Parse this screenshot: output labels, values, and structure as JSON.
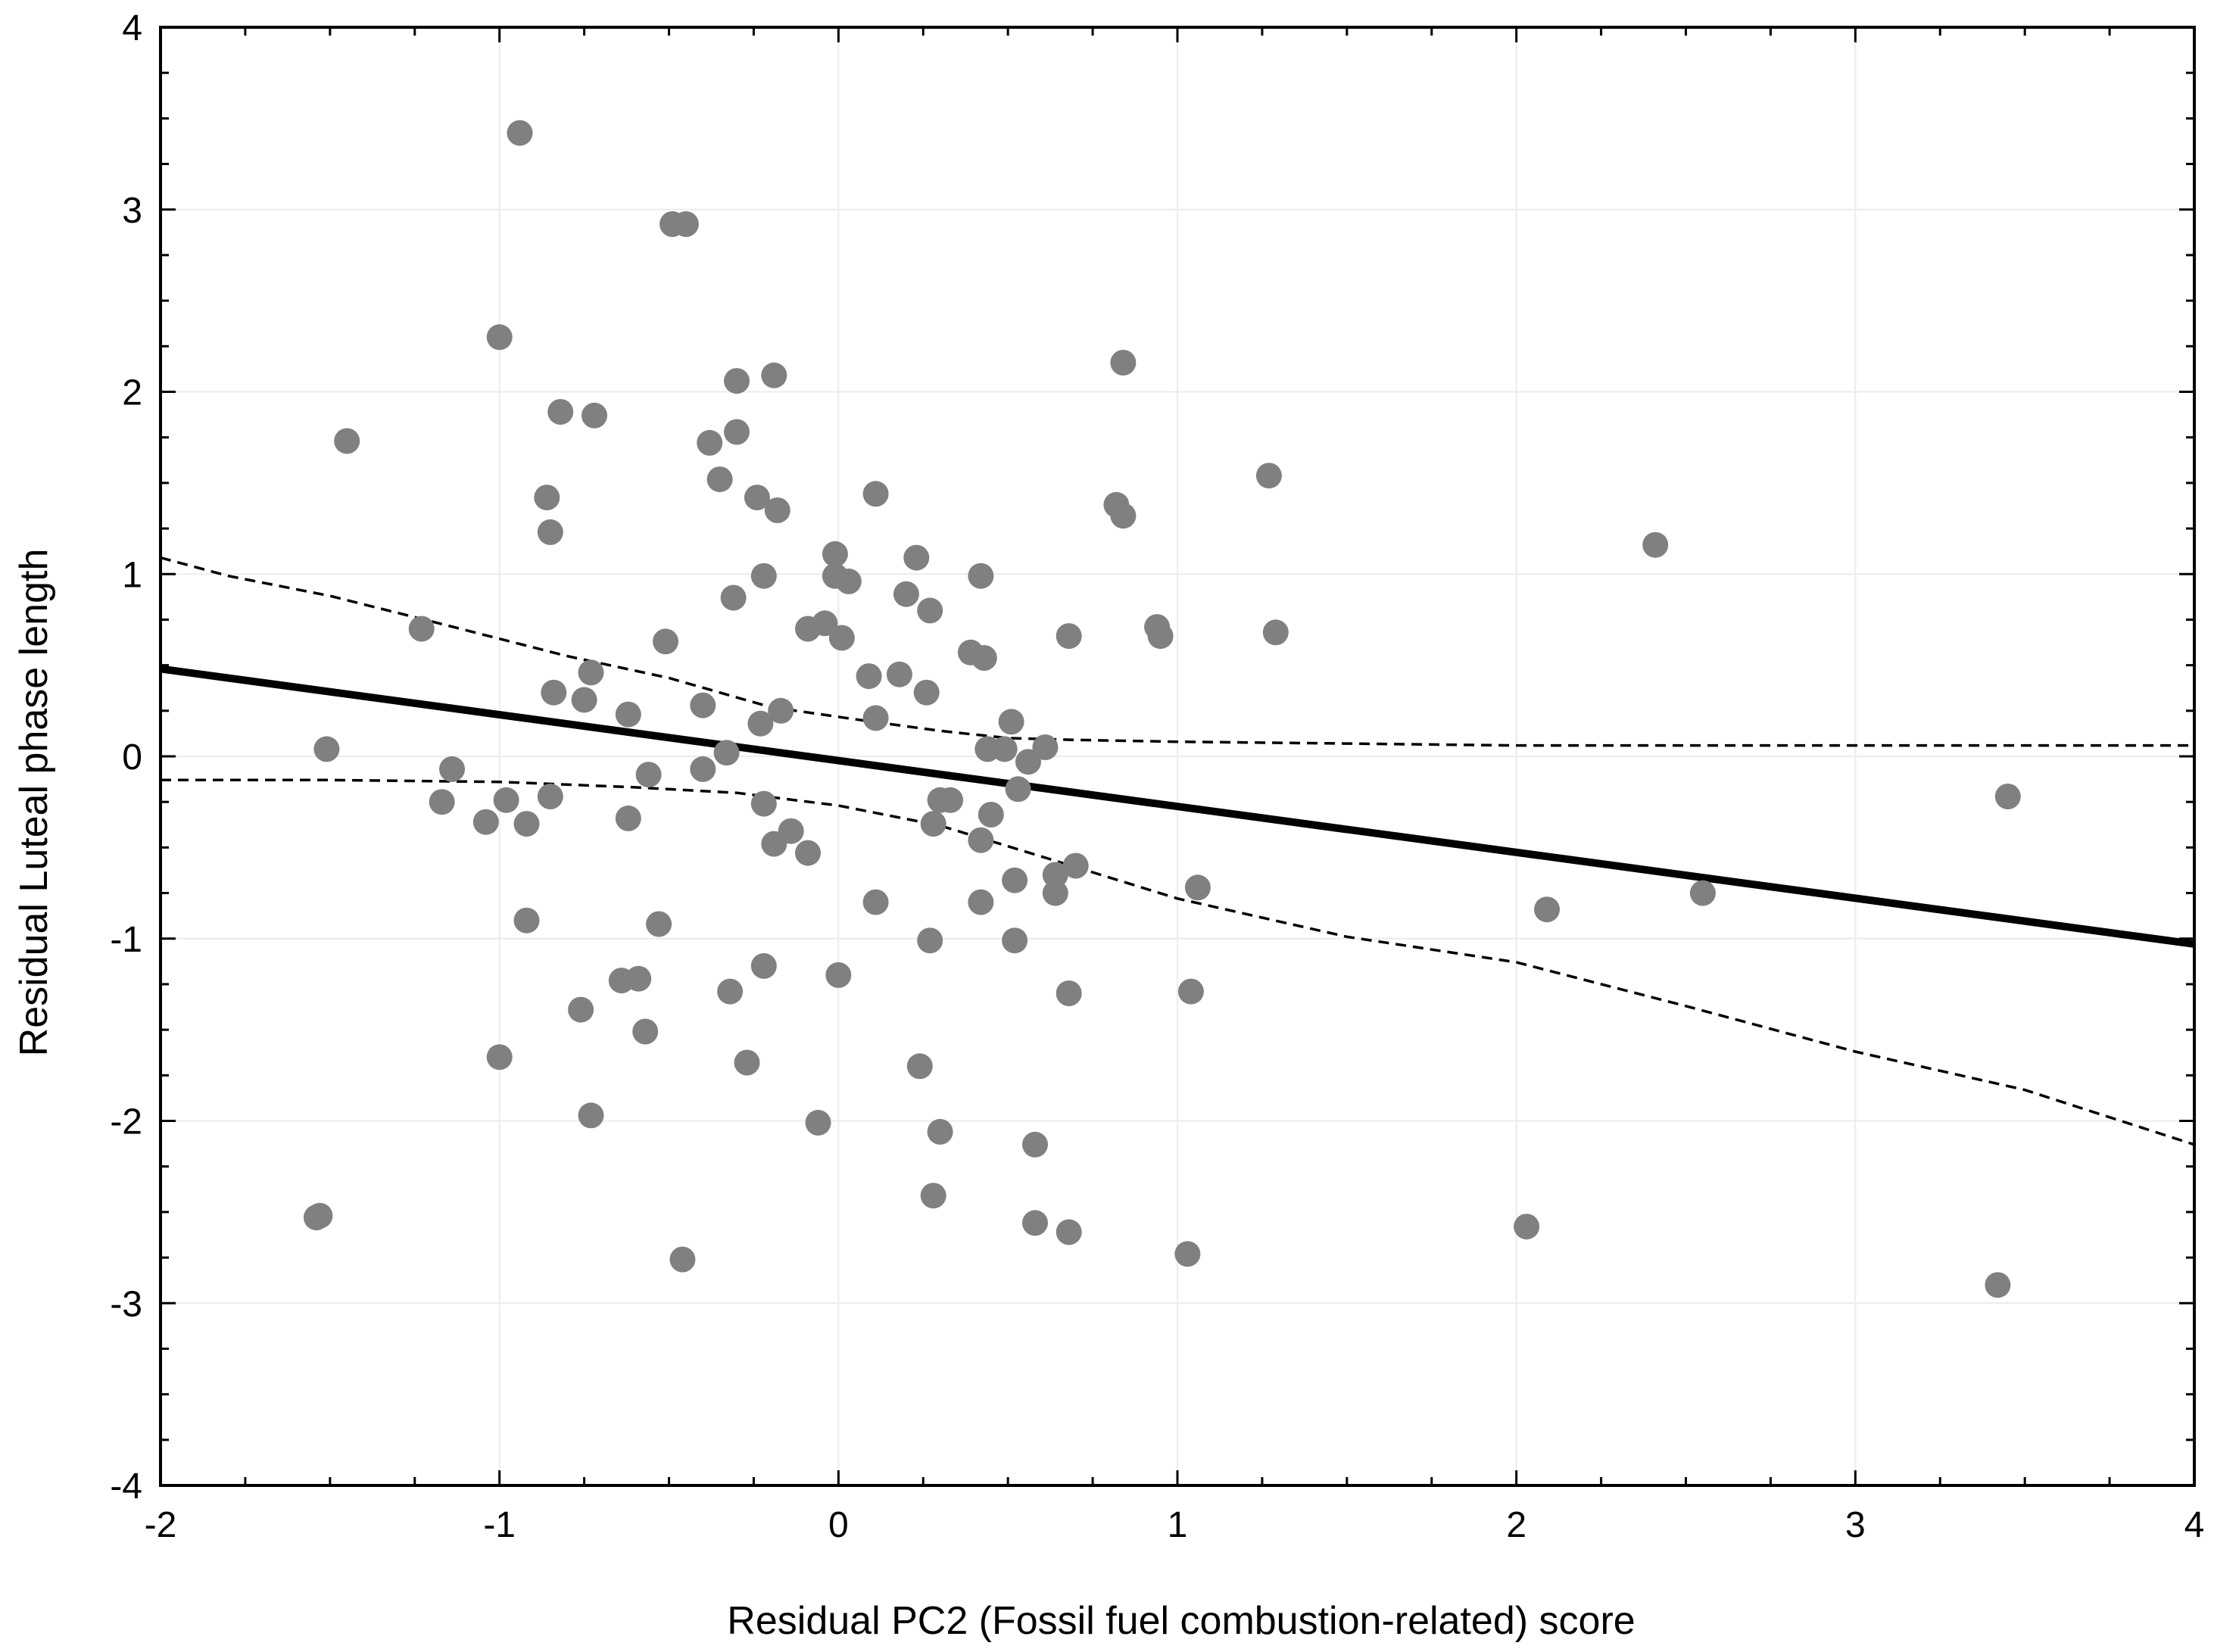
{
  "chart_data": {
    "type": "scatter",
    "title": "",
    "xlabel": "Residual PC2 (Fossil fuel combustion-related) score",
    "ylabel": "Residual Luteal phase length",
    "xlim": [
      -2,
      4
    ],
    "ylim": [
      -4,
      4
    ],
    "x_ticks": [
      -2,
      -1,
      0,
      1,
      2,
      3,
      4
    ],
    "y_ticks": [
      -4,
      -3,
      -2,
      -1,
      0,
      1,
      2,
      3,
      4
    ],
    "x_tick_labels": [
      "-2",
      "-1",
      "0",
      "1",
      "2",
      "3",
      "4"
    ],
    "y_tick_labels": [
      "-4",
      "-3",
      "-2",
      "-1",
      "0",
      "1",
      "2",
      "3",
      "4"
    ],
    "grid": true,
    "point_color": "#808080",
    "points": [
      [
        -0.94,
        3.42
      ],
      [
        -0.49,
        2.92
      ],
      [
        -0.45,
        2.92
      ],
      [
        -1.0,
        2.3
      ],
      [
        -0.3,
        2.06
      ],
      [
        -0.19,
        2.09
      ],
      [
        -0.82,
        1.89
      ],
      [
        -0.72,
        1.87
      ],
      [
        -1.45,
        1.73
      ],
      [
        -0.3,
        1.78
      ],
      [
        -0.38,
        1.72
      ],
      [
        -0.35,
        1.52
      ],
      [
        -0.86,
        1.42
      ],
      [
        -0.24,
        1.42
      ],
      [
        -0.18,
        1.35
      ],
      [
        -0.85,
        1.23
      ],
      [
        0.11,
        1.44
      ],
      [
        0.84,
        2.16
      ],
      [
        0.82,
        1.38
      ],
      [
        0.84,
        1.32
      ],
      [
        1.27,
        1.54
      ],
      [
        2.41,
        1.16
      ],
      [
        -0.01,
        1.11
      ],
      [
        0.23,
        1.09
      ],
      [
        0.42,
        0.99
      ],
      [
        -0.22,
        0.99
      ],
      [
        -0.01,
        0.99
      ],
      [
        0.03,
        0.96
      ],
      [
        0.2,
        0.89
      ],
      [
        -0.31,
        0.87
      ],
      [
        0.27,
        0.8
      ],
      [
        -1.23,
        0.7
      ],
      [
        -0.09,
        0.7
      ],
      [
        -0.04,
        0.73
      ],
      [
        0.01,
        0.65
      ],
      [
        -0.51,
        0.63
      ],
      [
        0.68,
        0.66
      ],
      [
        0.94,
        0.71
      ],
      [
        0.95,
        0.66
      ],
      [
        1.29,
        0.68
      ],
      [
        -0.73,
        0.46
      ],
      [
        0.09,
        0.44
      ],
      [
        0.18,
        0.45
      ],
      [
        0.39,
        0.57
      ],
      [
        0.43,
        0.54
      ],
      [
        -0.84,
        0.35
      ],
      [
        -0.75,
        0.31
      ],
      [
        0.26,
        0.35
      ],
      [
        -0.62,
        0.23
      ],
      [
        -0.4,
        0.28
      ],
      [
        -0.17,
        0.25
      ],
      [
        -0.23,
        0.18
      ],
      [
        0.11,
        0.21
      ],
      [
        0.51,
        0.19
      ],
      [
        -1.51,
        0.04
      ],
      [
        -0.33,
        0.02
      ],
      [
        0.44,
        0.04
      ],
      [
        0.49,
        0.04
      ],
      [
        0.61,
        0.05
      ],
      [
        0.56,
        -0.03
      ],
      [
        -1.14,
        -0.07
      ],
      [
        -0.56,
        -0.1
      ],
      [
        -0.4,
        -0.07
      ],
      [
        0.53,
        -0.18
      ],
      [
        -1.17,
        -0.25
      ],
      [
        -0.98,
        -0.24
      ],
      [
        -0.85,
        -0.22
      ],
      [
        -0.22,
        -0.26
      ],
      [
        0.3,
        -0.24
      ],
      [
        0.33,
        -0.24
      ],
      [
        -1.04,
        -0.36
      ],
      [
        -0.92,
        -0.37
      ],
      [
        -0.62,
        -0.34
      ],
      [
        0.28,
        -0.37
      ],
      [
        0.45,
        -0.32
      ],
      [
        -0.14,
        -0.41
      ],
      [
        -0.19,
        -0.48
      ],
      [
        -0.09,
        -0.53
      ],
      [
        0.42,
        -0.46
      ],
      [
        0.7,
        -0.6
      ],
      [
        0.64,
        -0.65
      ],
      [
        0.52,
        -0.68
      ],
      [
        0.64,
        -0.75
      ],
      [
        1.06,
        -0.72
      ],
      [
        3.45,
        -0.22
      ],
      [
        0.11,
        -0.8
      ],
      [
        0.42,
        -0.8
      ],
      [
        2.09,
        -0.84
      ],
      [
        2.55,
        -0.75
      ],
      [
        -0.92,
        -0.9
      ],
      [
        -0.53,
        -0.92
      ],
      [
        0.27,
        -1.01
      ],
      [
        0.52,
        -1.01
      ],
      [
        -0.22,
        -1.15
      ],
      [
        -0.59,
        -1.22
      ],
      [
        -0.64,
        -1.23
      ],
      [
        0.0,
        -1.2
      ],
      [
        -0.32,
        -1.29
      ],
      [
        0.68,
        -1.3
      ],
      [
        1.04,
        -1.29
      ],
      [
        -0.76,
        -1.39
      ],
      [
        -0.57,
        -1.51
      ],
      [
        -1.0,
        -1.65
      ],
      [
        -0.27,
        -1.68
      ],
      [
        0.24,
        -1.7
      ],
      [
        -0.73,
        -1.97
      ],
      [
        -0.06,
        -2.01
      ],
      [
        0.3,
        -2.06
      ],
      [
        0.58,
        -2.13
      ],
      [
        0.28,
        -2.41
      ],
      [
        -1.54,
        -2.53
      ],
      [
        -1.53,
        -2.52
      ],
      [
        0.58,
        -2.56
      ],
      [
        0.68,
        -2.61
      ],
      [
        2.03,
        -2.58
      ],
      [
        1.03,
        -2.73
      ],
      [
        -0.46,
        -2.76
      ],
      [
        3.42,
        -2.9
      ]
    ],
    "fit_line": {
      "x": [
        -2,
        4
      ],
      "y": [
        0.48,
        -1.03
      ]
    },
    "ci_upper": {
      "x": [
        -2,
        -1.8,
        -1.5,
        -1.2,
        -0.8,
        -0.5,
        -0.2,
        0.1,
        0.3,
        0.5,
        0.7,
        1.0,
        1.5,
        2.0,
        2.5,
        3.0,
        3.5,
        4.0
      ],
      "y": [
        1.09,
        0.99,
        0.88,
        0.74,
        0.55,
        0.43,
        0.27,
        0.19,
        0.14,
        0.1,
        0.09,
        0.08,
        0.07,
        0.06,
        0.06,
        0.06,
        0.06,
        0.06
      ]
    },
    "ci_lower": {
      "x": [
        -2,
        -1.5,
        -1.0,
        -0.6,
        -0.3,
        0.0,
        0.3,
        0.6,
        1.0,
        1.5,
        2.0,
        2.5,
        3.0,
        3.5,
        4.0
      ],
      "y": [
        -0.13,
        -0.13,
        -0.14,
        -0.17,
        -0.2,
        -0.27,
        -0.38,
        -0.55,
        -0.78,
        -0.99,
        -1.13,
        -1.37,
        -1.62,
        -1.83,
        -2.13
      ]
    }
  }
}
